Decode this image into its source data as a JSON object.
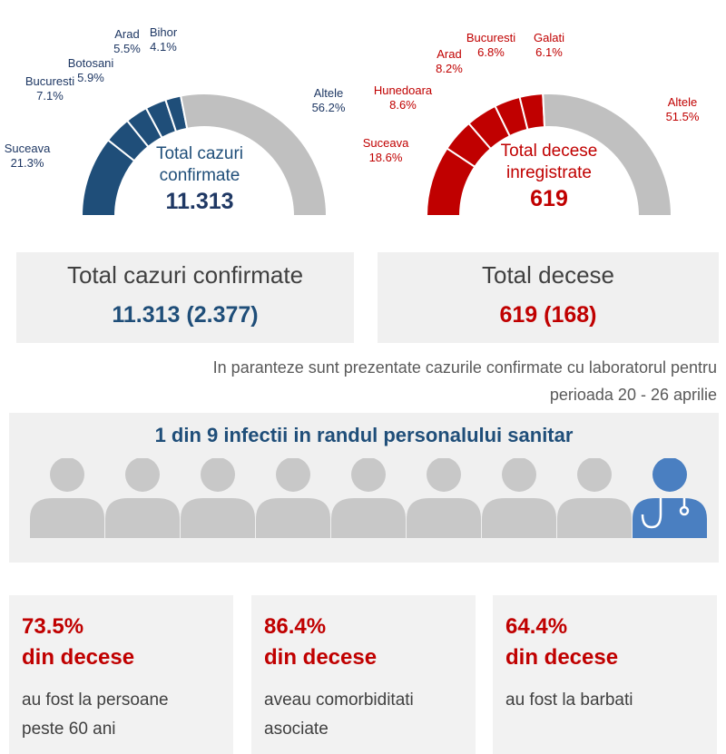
{
  "chart_data": [
    {
      "type": "pie",
      "variant": "half-donut",
      "color": "#1f4e79",
      "other_color": "#c0c0c0",
      "center_label": "Total cazuri\nconfirmate",
      "center_value": "11.313",
      "slices": [
        {
          "name": "Suceava",
          "value": 21.3,
          "label": "21.3%"
        },
        {
          "name": "Bucuresti",
          "value": 7.1,
          "label": "7.1%"
        },
        {
          "name": "Botosani",
          "value": 5.9,
          "label": "5.9%"
        },
        {
          "name": "Arad",
          "value": 5.5,
          "label": "5.5%"
        },
        {
          "name": "Bihor",
          "value": 4.1,
          "label": "4.1%"
        },
        {
          "name": "Altele",
          "value": 56.2,
          "label": "56.2%"
        }
      ]
    },
    {
      "type": "pie",
      "variant": "half-donut",
      "color": "#c00000",
      "other_color": "#c0c0c0",
      "center_label": "Total decese\ninregistrate",
      "center_value": "619",
      "slices": [
        {
          "name": "Suceava",
          "value": 18.6,
          "label": "18.6%"
        },
        {
          "name": "Hunedoara",
          "value": 8.6,
          "label": "8.6%"
        },
        {
          "name": "Arad",
          "value": 8.2,
          "label": "8.2%"
        },
        {
          "name": "Bucuresti",
          "value": 6.8,
          "label": "6.8%"
        },
        {
          "name": "Galati",
          "value": 6.1,
          "label": "6.1%"
        },
        {
          "name": "Altele",
          "value": 51.5,
          "label": "51.5%"
        }
      ]
    }
  ],
  "totals": {
    "cases": {
      "label": "Total cazuri confirmate",
      "value": "11.313 (2.377)"
    },
    "deaths": {
      "label": "Total decese",
      "value": "619 (168)"
    }
  },
  "note": {
    "line1": "In paranteze sunt prezentate cazurile confirmate cu laboratorul pentru",
    "line2": "perioada 20 - 26 aprilie"
  },
  "staff": {
    "title": "1 din 9 infectii in randul personalului sanitar",
    "icons": [
      "person-icon",
      "person-icon",
      "person-icon",
      "person-icon",
      "person-icon",
      "person-icon",
      "person-icon",
      "person-icon",
      "doctor-icon"
    ],
    "gray": "#c8c8c8",
    "blue": "#4a7fc1"
  },
  "stats": [
    {
      "pct": "73.5%",
      "sub": "din decese",
      "desc1": "au fost la persoane",
      "desc2": "peste 60 ani"
    },
    {
      "pct": "86.4%",
      "sub": "din decese",
      "desc1": "aveau comorbiditati",
      "desc2": "asociate"
    },
    {
      "pct": "64.4%",
      "sub": "din decese",
      "desc1": "au fost la barbati",
      "desc2": ""
    }
  ]
}
